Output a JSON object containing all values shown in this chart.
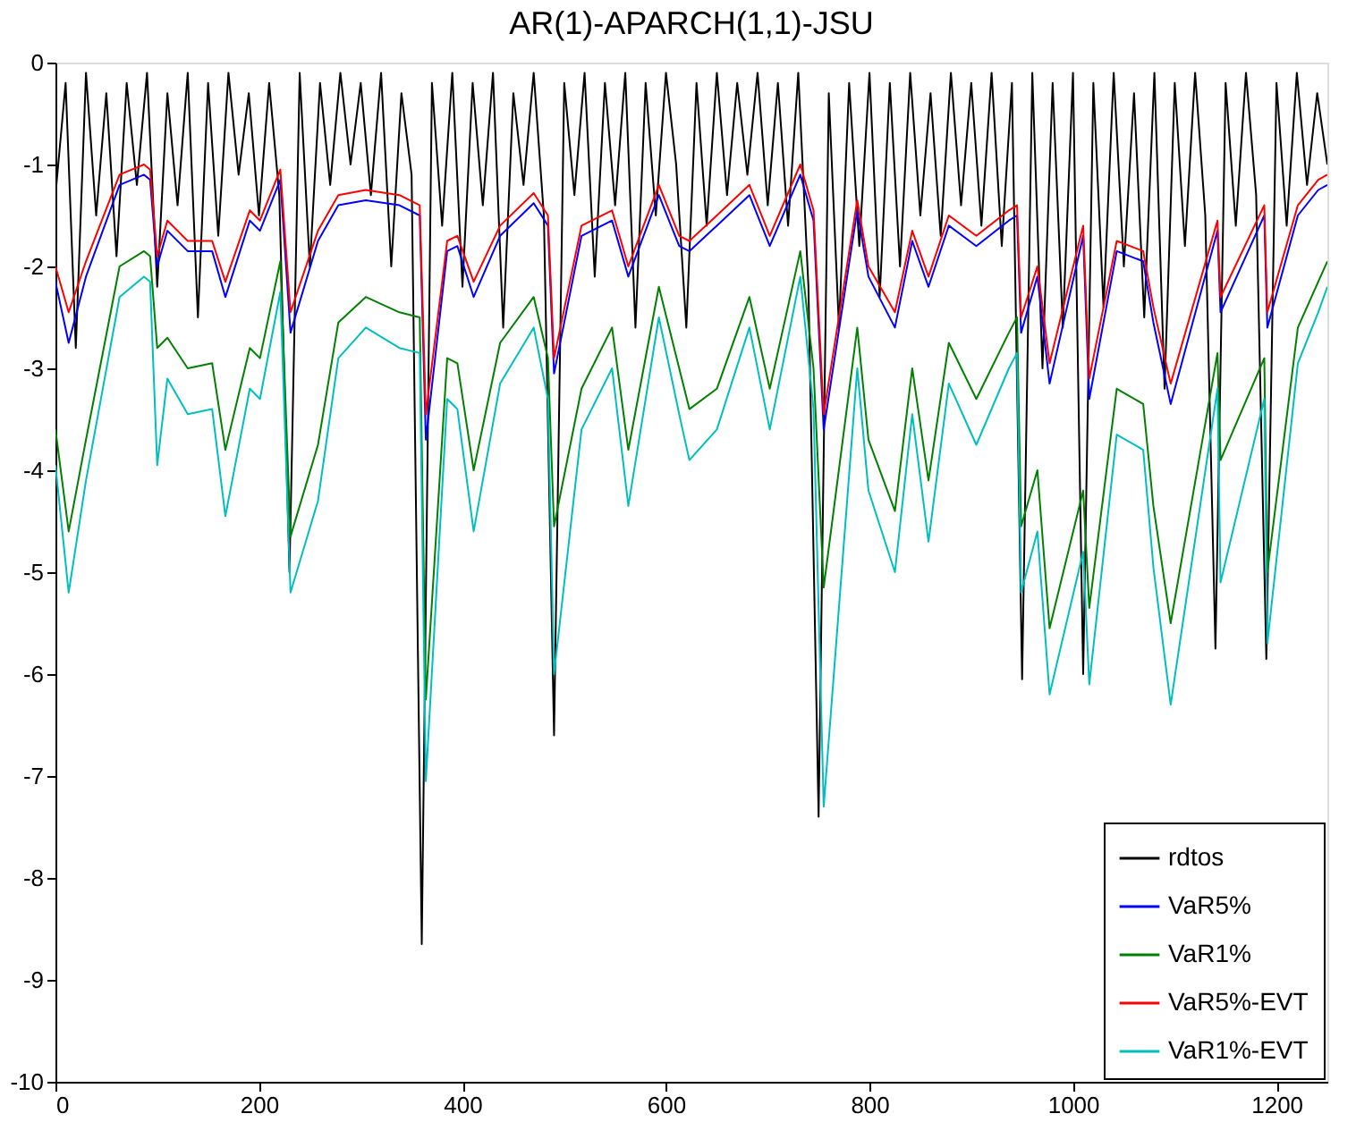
{
  "chart_data": {
    "type": "line",
    "title": "AR(1)-APARCH(1,1)-JSU",
    "xlim": [
      0,
      1250
    ],
    "ylim": [
      -10,
      0
    ],
    "xticks": [
      0,
      200,
      400,
      600,
      800,
      1000,
      1200
    ],
    "yticks": [
      0,
      -1,
      -2,
      -3,
      -4,
      -5,
      -6,
      -7,
      -8,
      -9,
      -10
    ],
    "grid": false,
    "legend": "bottom right",
    "marker": "none",
    "line_style": "solid",
    "series": [
      {
        "name": "rdtos",
        "color": "#000000",
        "x": [
          0,
          10,
          20,
          30,
          40,
          50,
          60,
          70,
          80,
          90,
          100,
          110,
          120,
          130,
          140,
          150,
          160,
          170,
          180,
          190,
          200,
          210,
          220,
          230,
          240,
          250,
          260,
          270,
          280,
          290,
          300,
          310,
          320,
          330,
          340,
          350,
          360,
          370,
          380,
          390,
          400,
          410,
          420,
          430,
          440,
          450,
          460,
          470,
          480,
          490,
          500,
          510,
          520,
          530,
          540,
          550,
          560,
          570,
          580,
          590,
          600,
          610,
          620,
          630,
          640,
          650,
          660,
          670,
          680,
          690,
          700,
          710,
          720,
          730,
          740,
          750,
          760,
          770,
          780,
          790,
          800,
          810,
          820,
          830,
          840,
          850,
          860,
          870,
          880,
          890,
          900,
          910,
          920,
          930,
          940,
          950,
          960,
          970,
          980,
          990,
          1000,
          1010,
          1020,
          1030,
          1040,
          1050,
          1060,
          1070,
          1080,
          1090,
          1100,
          1110,
          1120,
          1130,
          1140,
          1150,
          1160,
          1170,
          1180,
          1190,
          1200,
          1210,
          1220,
          1230,
          1240,
          1250
        ],
        "values": [
          -1.3,
          -0.2,
          -2.8,
          -0.1,
          -1.5,
          -0.3,
          -1.9,
          -0.2,
          -1.2,
          -0.1,
          -2.2,
          -0.3,
          -1.4,
          -0.1,
          -2.5,
          -0.2,
          -1.7,
          -0.1,
          -1.1,
          -0.3,
          -1.5,
          -0.2,
          -1.3,
          -5.0,
          -0.1,
          -2.0,
          -0.2,
          -1.2,
          -0.1,
          -1.0,
          -0.2,
          -1.3,
          -0.1,
          -2.0,
          -0.3,
          -1.1,
          -8.65,
          -0.2,
          -1.6,
          -0.1,
          -2.2,
          -0.2,
          -1.4,
          -0.1,
          -2.6,
          -0.3,
          -1.2,
          -0.1,
          -1.5,
          -6.6,
          -0.2,
          -1.3,
          -0.1,
          -2.1,
          -0.2,
          -1.4,
          -0.1,
          -2.6,
          -0.2,
          -1.5,
          -0.1,
          -1.0,
          -2.6,
          -0.2,
          -1.6,
          -0.1,
          -1.3,
          -0.2,
          -1.1,
          -0.1,
          -1.4,
          -0.2,
          -1.6,
          -0.1,
          -2.2,
          -7.4,
          -0.3,
          -2.6,
          -0.2,
          -1.8,
          -0.1,
          -2.3,
          -0.2,
          -2.0,
          -0.1,
          -1.5,
          -0.3,
          -1.7,
          -0.1,
          -1.4,
          -0.2,
          -1.6,
          -0.1,
          -1.8,
          -0.2,
          -6.05,
          -0.1,
          -3.0,
          -0.2,
          -2.6,
          -0.1,
          -6.0,
          -0.2,
          -2.4,
          -0.1,
          -2.0,
          -0.3,
          -2.5,
          -0.1,
          -3.2,
          -0.2,
          -1.8,
          -0.1,
          -1.5,
          -5.75,
          -0.2,
          -1.6,
          -0.1,
          -1.3,
          -5.85,
          -0.2,
          -1.6,
          -0.1,
          -1.2,
          -0.3,
          -1.0
        ]
      },
      {
        "name": "VaR5%",
        "color": "#0000ff",
        "x": [
          0,
          13,
          30,
          63,
          87,
          93,
          100,
          110,
          130,
          154,
          167,
          191,
          201,
          221,
          231,
          258,
          278,
          305,
          338,
          358,
          364,
          385,
          395,
          411,
          437,
          470,
          484,
          490,
          517,
          547,
          563,
          593,
          613,
          623,
          650,
          682,
          702,
          732,
          745,
          755,
          788,
          799,
          825,
          842,
          858,
          878,
          905,
          937,
          945,
          949,
          965,
          977,
          1010,
          1016,
          1043,
          1069,
          1079,
          1096,
          1142,
          1145,
          1188,
          1191,
          1221,
          1241,
          1250
        ],
        "values": [
          -2.15,
          -2.75,
          -2.1,
          -1.2,
          -1.1,
          -1.15,
          -2.0,
          -1.65,
          -1.85,
          -1.85,
          -2.3,
          -1.55,
          -1.65,
          -1.15,
          -2.65,
          -1.75,
          -1.4,
          -1.35,
          -1.4,
          -1.5,
          -3.7,
          -1.85,
          -1.8,
          -2.3,
          -1.7,
          -1.38,
          -1.6,
          -3.05,
          -1.7,
          -1.55,
          -2.1,
          -1.3,
          -1.8,
          -1.85,
          -1.6,
          -1.3,
          -1.8,
          -1.1,
          -1.55,
          -3.6,
          -1.45,
          -2.1,
          -2.6,
          -1.75,
          -2.2,
          -1.6,
          -1.8,
          -1.55,
          -1.5,
          -2.65,
          -2.1,
          -3.15,
          -1.7,
          -3.3,
          -1.85,
          -1.95,
          -2.55,
          -3.35,
          -1.65,
          -2.45,
          -1.5,
          -2.6,
          -1.5,
          -1.25,
          -1.2
        ]
      },
      {
        "name": "VaR1%",
        "color": "#008000",
        "x": [
          0,
          13,
          30,
          63,
          87,
          93,
          100,
          110,
          130,
          154,
          167,
          191,
          201,
          221,
          231,
          258,
          278,
          305,
          338,
          358,
          364,
          385,
          395,
          411,
          437,
          470,
          484,
          490,
          517,
          547,
          563,
          593,
          613,
          623,
          650,
          682,
          702,
          732,
          745,
          755,
          788,
          799,
          825,
          842,
          858,
          878,
          905,
          937,
          945,
          949,
          965,
          977,
          1010,
          1016,
          1043,
          1069,
          1079,
          1096,
          1142,
          1145,
          1188,
          1191,
          1221,
          1241,
          1250
        ],
        "values": [
          -3.6,
          -4.6,
          -3.7,
          -2.0,
          -1.85,
          -1.9,
          -2.8,
          -2.7,
          -3.0,
          -2.95,
          -3.8,
          -2.8,
          -2.9,
          -1.95,
          -4.65,
          -3.75,
          -2.55,
          -2.3,
          -2.45,
          -2.5,
          -6.25,
          -2.9,
          -2.95,
          -4.0,
          -2.75,
          -2.3,
          -2.9,
          -4.55,
          -3.2,
          -2.6,
          -3.8,
          -2.2,
          -3.0,
          -3.4,
          -3.2,
          -2.3,
          -3.2,
          -1.85,
          -3.0,
          -5.15,
          -2.6,
          -3.7,
          -4.4,
          -3.0,
          -4.1,
          -2.75,
          -3.3,
          -2.65,
          -2.5,
          -4.55,
          -4.0,
          -5.55,
          -4.2,
          -5.35,
          -3.2,
          -3.35,
          -4.35,
          -5.5,
          -2.85,
          -3.9,
          -2.9,
          -5.0,
          -2.6,
          -2.15,
          -1.95
        ]
      },
      {
        "name": "VaR5%-EVT",
        "color": "#ff0000",
        "x": [
          0,
          13,
          30,
          63,
          87,
          93,
          100,
          110,
          130,
          154,
          167,
          191,
          201,
          221,
          231,
          258,
          278,
          305,
          338,
          358,
          364,
          385,
          395,
          411,
          437,
          470,
          484,
          490,
          517,
          547,
          563,
          593,
          613,
          623,
          650,
          682,
          702,
          732,
          745,
          755,
          788,
          799,
          825,
          842,
          858,
          878,
          905,
          937,
          945,
          949,
          965,
          977,
          1010,
          1016,
          1043,
          1069,
          1079,
          1096,
          1142,
          1145,
          1188,
          1191,
          1221,
          1241,
          1250
        ],
        "values": [
          -2.0,
          -2.45,
          -1.95,
          -1.1,
          -1.0,
          -1.05,
          -1.9,
          -1.55,
          -1.75,
          -1.75,
          -2.15,
          -1.45,
          -1.55,
          -1.05,
          -2.45,
          -1.65,
          -1.3,
          -1.25,
          -1.3,
          -1.4,
          -3.45,
          -1.75,
          -1.7,
          -2.15,
          -1.6,
          -1.28,
          -1.5,
          -2.9,
          -1.6,
          -1.45,
          -2.0,
          -1.2,
          -1.7,
          -1.75,
          -1.5,
          -1.2,
          -1.7,
          -1.0,
          -1.45,
          -3.45,
          -1.35,
          -2.0,
          -2.45,
          -1.65,
          -2.1,
          -1.5,
          -1.7,
          -1.45,
          -1.4,
          -2.5,
          -2.0,
          -2.95,
          -1.6,
          -3.1,
          -1.75,
          -1.85,
          -2.4,
          -3.15,
          -1.55,
          -2.3,
          -1.4,
          -2.45,
          -1.4,
          -1.15,
          -1.1
        ]
      },
      {
        "name": "VaR1%-EVT",
        "color": "#00bfbf",
        "x": [
          0,
          13,
          30,
          63,
          87,
          93,
          100,
          110,
          130,
          154,
          167,
          191,
          201,
          221,
          231,
          258,
          278,
          305,
          338,
          358,
          364,
          385,
          395,
          411,
          437,
          470,
          484,
          490,
          517,
          547,
          563,
          593,
          613,
          623,
          650,
          682,
          702,
          732,
          745,
          755,
          788,
          799,
          825,
          842,
          858,
          878,
          905,
          937,
          945,
          949,
          965,
          977,
          1010,
          1016,
          1043,
          1069,
          1079,
          1096,
          1142,
          1145,
          1188,
          1191,
          1221,
          1241,
          1250
        ],
        "values": [
          -3.95,
          -5.2,
          -4.1,
          -2.3,
          -2.1,
          -2.15,
          -3.95,
          -3.1,
          -3.45,
          -3.4,
          -4.45,
          -3.2,
          -3.3,
          -2.25,
          -5.2,
          -4.3,
          -2.9,
          -2.6,
          -2.8,
          -2.85,
          -7.05,
          -3.3,
          -3.4,
          -4.6,
          -3.15,
          -2.6,
          -3.3,
          -6.0,
          -3.6,
          -3.0,
          -4.35,
          -2.5,
          -3.45,
          -3.9,
          -3.6,
          -2.6,
          -3.6,
          -2.1,
          -3.4,
          -7.3,
          -3.0,
          -4.2,
          -5.0,
          -3.45,
          -4.7,
          -3.15,
          -3.75,
          -3.0,
          -2.85,
          -5.2,
          -4.6,
          -6.2,
          -4.8,
          -6.1,
          -3.65,
          -3.8,
          -4.95,
          -6.3,
          -3.2,
          -5.1,
          -3.3,
          -5.7,
          -2.95,
          -2.45,
          -2.2
        ]
      }
    ]
  }
}
